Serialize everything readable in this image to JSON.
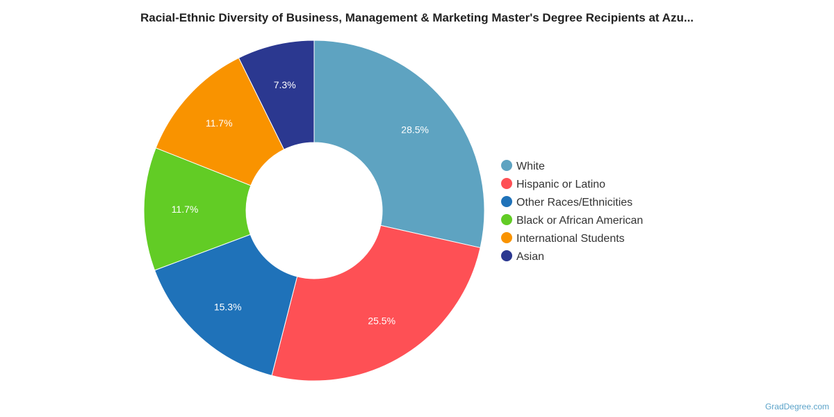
{
  "chart_data": {
    "type": "pie",
    "title": "Racial-Ethnic Diversity of Business, Management & Marketing Master's Degree Recipients at Azu...",
    "legend_position": "right",
    "donut": true,
    "slices": [
      {
        "name": "White",
        "value": 28.5,
        "label": "28.5%",
        "color": "#5ea3c1"
      },
      {
        "name": "Hispanic or Latino",
        "value": 25.5,
        "label": "25.5%",
        "color": "#fe5055"
      },
      {
        "name": "Other Races/Ethnicities",
        "value": 15.3,
        "label": "15.3%",
        "color": "#1f72b9"
      },
      {
        "name": "Black or African American",
        "value": 11.7,
        "label": "11.7%",
        "color": "#62cc25"
      },
      {
        "name": "International Students",
        "value": 11.7,
        "label": "11.7%",
        "color": "#f99300"
      },
      {
        "name": "Asian",
        "value": 7.3,
        "label": "7.3%",
        "color": "#2b3890"
      }
    ]
  },
  "watermark": "GradDegree.com"
}
